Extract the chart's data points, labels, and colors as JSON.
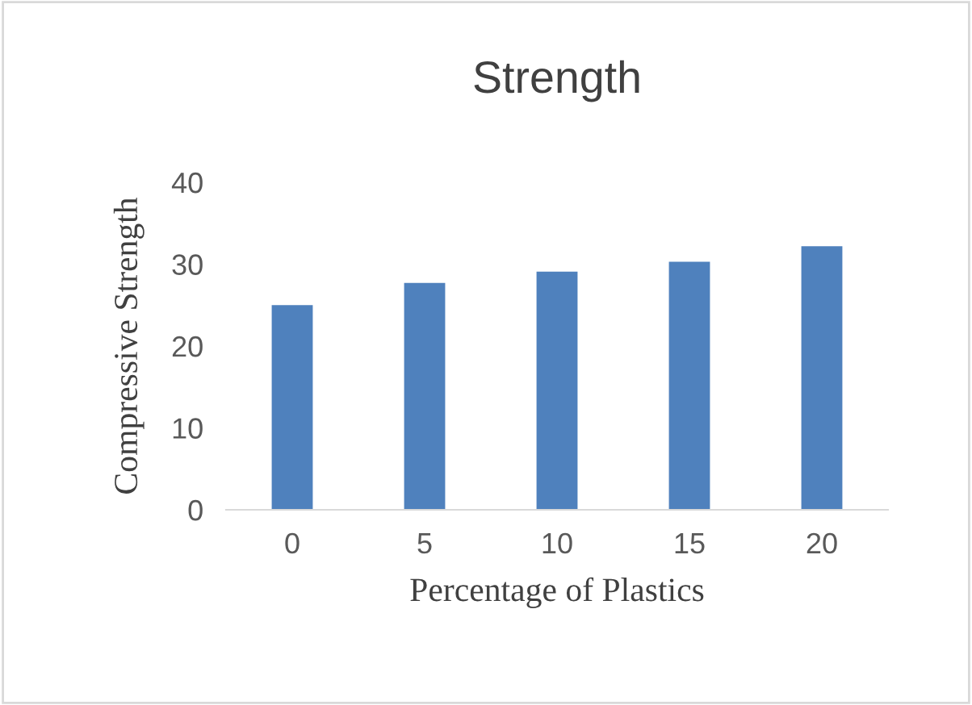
{
  "chart_data": {
    "type": "bar",
    "title": "Strength",
    "xlabel": "Percentage of Plastics",
    "ylabel": "Compressive Strength",
    "categories": [
      "0",
      "5",
      "10",
      "15",
      "20"
    ],
    "values": [
      25.0,
      27.7,
      29.1,
      30.3,
      32.2
    ],
    "color": "#4f81bd",
    "ylim": [
      0,
      40
    ],
    "yticks": [
      0,
      10,
      20,
      30,
      40
    ],
    "grid": false,
    "legend": false
  }
}
